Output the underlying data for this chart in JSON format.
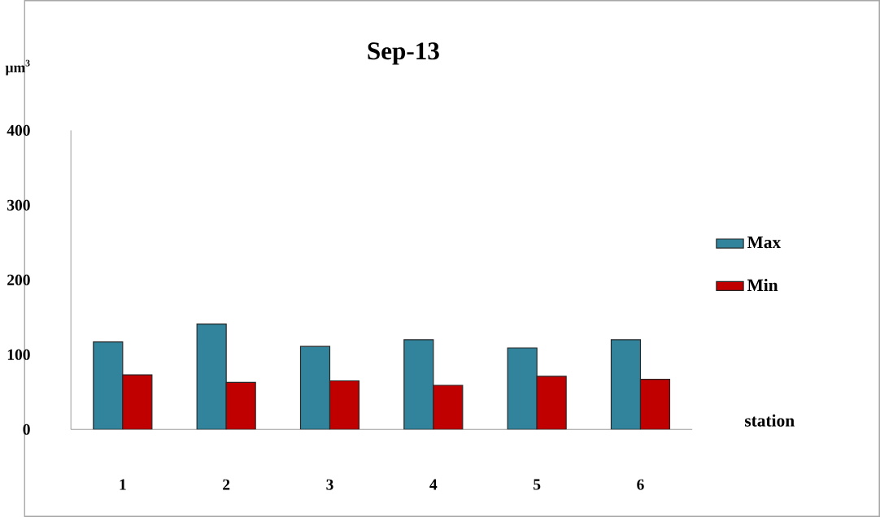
{
  "chart_data": {
    "type": "bar",
    "title": "Sep-13",
    "ylabel": "µm$^{3}$",
    "xlabel": "station",
    "categories": [
      "1",
      "2",
      "3",
      "4",
      "5",
      "6"
    ],
    "series": [
      {
        "name": "Max",
        "color": "#31849b",
        "values": [
          117,
          141,
          111,
          120,
          109,
          120
        ]
      },
      {
        "name": "Min",
        "color": "#c00000",
        "values": [
          73,
          63,
          65,
          59,
          71,
          67
        ]
      }
    ],
    "ylim": [
      0,
      400
    ],
    "yticks": [
      0,
      100,
      200,
      300,
      400
    ],
    "grid": false,
    "legend": "right"
  }
}
